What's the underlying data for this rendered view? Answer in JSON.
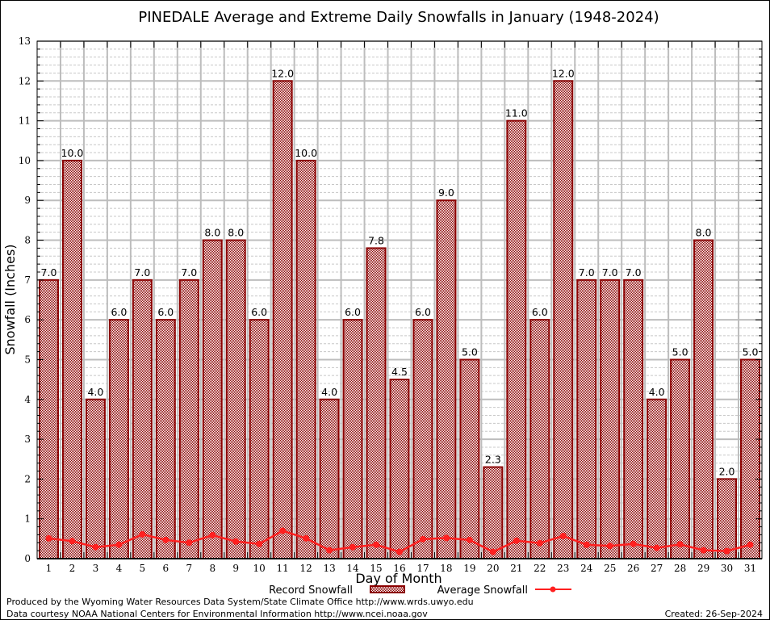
{
  "chart_data": {
    "type": "bar",
    "title": "PINEDALE Average and Extreme Daily Snowfalls in January (1948-2024)",
    "xlabel": "Day of Month",
    "ylabel": "Snowfall (Inches)",
    "ylim": [
      0,
      13
    ],
    "yticks": [
      "0",
      "1",
      "2",
      "3",
      "4",
      "5",
      "6",
      "7",
      "8",
      "9",
      "10",
      "11",
      "12",
      "13"
    ],
    "grid": true,
    "legend_position": "bottom",
    "categories": [
      "1",
      "2",
      "3",
      "4",
      "5",
      "6",
      "7",
      "8",
      "9",
      "10",
      "11",
      "12",
      "13",
      "14",
      "15",
      "16",
      "17",
      "18",
      "19",
      "20",
      "21",
      "22",
      "23",
      "24",
      "25",
      "26",
      "27",
      "28",
      "29",
      "30",
      "31"
    ],
    "series": [
      {
        "name": "Record Snowfall",
        "type": "bar",
        "color": "#8b0000",
        "values": [
          7.0,
          10.0,
          4.0,
          6.0,
          7.0,
          6.0,
          7.0,
          8.0,
          8.0,
          6.0,
          12.0,
          10.0,
          4.0,
          6.0,
          7.8,
          4.5,
          6.0,
          9.0,
          5.0,
          2.3,
          11.0,
          6.0,
          12.0,
          7.0,
          7.0,
          7.0,
          4.0,
          5.0,
          8.0,
          2.0,
          5.0
        ],
        "labels": [
          "7.0",
          "10.0",
          "4.0",
          "6.0",
          "7.0",
          "6.0",
          "7.0",
          "8.0",
          "8.0",
          "6.0",
          "12.0",
          "10.0",
          "4.0",
          "6.0",
          "7.8",
          "4.5",
          "6.0",
          "9.0",
          "5.0",
          "2.3",
          "11.0",
          "6.0",
          "12.0",
          "7.0",
          "7.0",
          "7.0",
          "4.0",
          "5.0",
          "8.0",
          "2.0",
          "5.0"
        ]
      },
      {
        "name": "Average Snowfall",
        "type": "line",
        "color": "#ff2020",
        "values": [
          0.51,
          0.44,
          0.29,
          0.35,
          0.61,
          0.47,
          0.4,
          0.59,
          0.43,
          0.37,
          0.7,
          0.51,
          0.21,
          0.29,
          0.35,
          0.17,
          0.49,
          0.52,
          0.47,
          0.17,
          0.45,
          0.39,
          0.57,
          0.35,
          0.32,
          0.37,
          0.27,
          0.36,
          0.21,
          0.19,
          0.35
        ]
      }
    ]
  },
  "footer": {
    "produced_by": "Produced by the Wyoming Water Resources Data System/State Climate Office http://www.wrds.uwyo.edu",
    "data_courtesy": "Data courtesy NOAA National Centers for Environmental Information http://www.ncei.noaa.gov",
    "created": "Created: 26-Sep-2024"
  }
}
